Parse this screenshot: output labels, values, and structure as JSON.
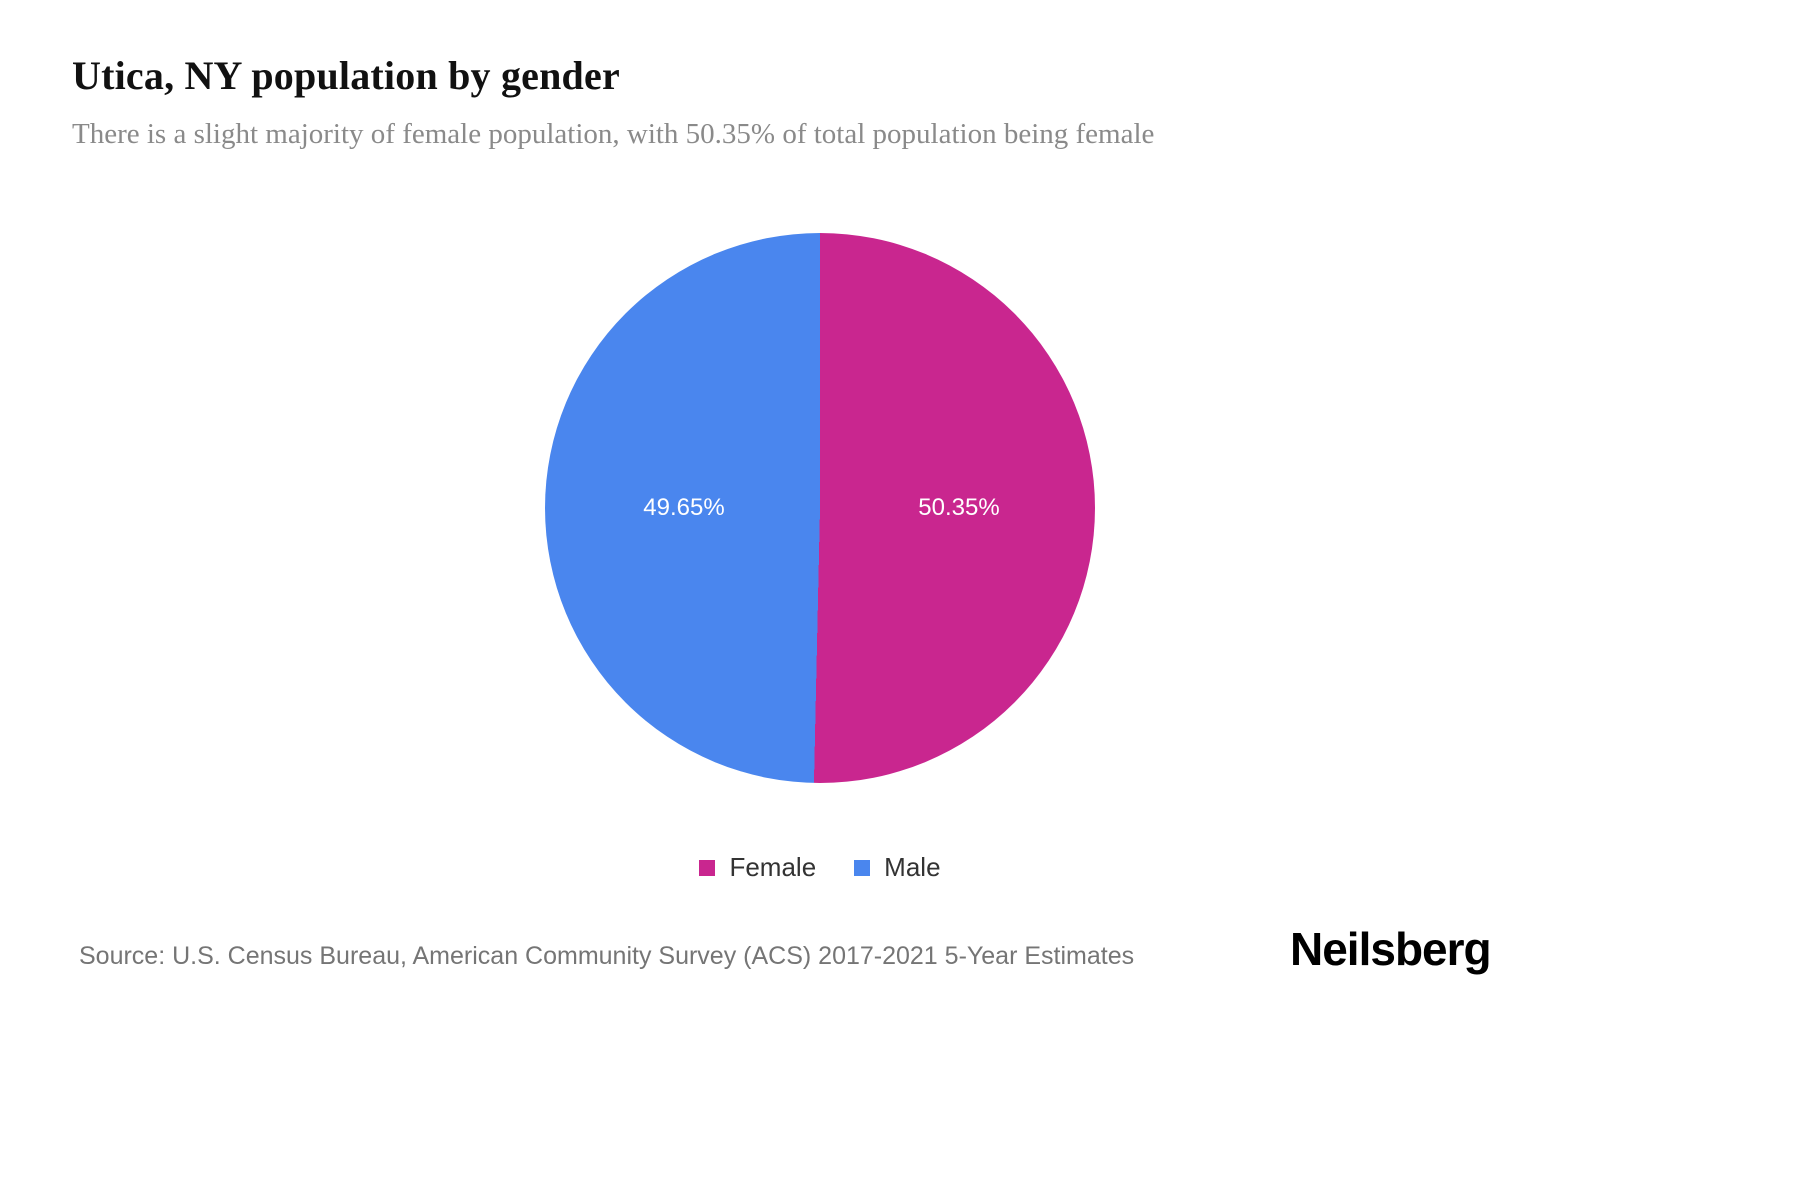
{
  "header": {
    "title": "Utica, NY population by gender",
    "subtitle": "There is a slight majority of female population, with 50.35% of total population being female"
  },
  "chart_data": {
    "type": "pie",
    "title": "Utica, NY population by gender",
    "start_angle_deg": 0,
    "direction": "clockwise",
    "legend_position": "bottom",
    "series": [
      {
        "label": "Female",
        "value": 50.35,
        "display": "50.35%",
        "color": "#c9268f"
      },
      {
        "label": "Male",
        "value": 49.65,
        "display": "49.65%",
        "color": "#4a86ee"
      }
    ]
  },
  "footer": {
    "source": "Source: U.S. Census Bureau, American Community Survey (ACS) 2017-2021 5-Year Estimates",
    "brand": "Neilsberg"
  }
}
